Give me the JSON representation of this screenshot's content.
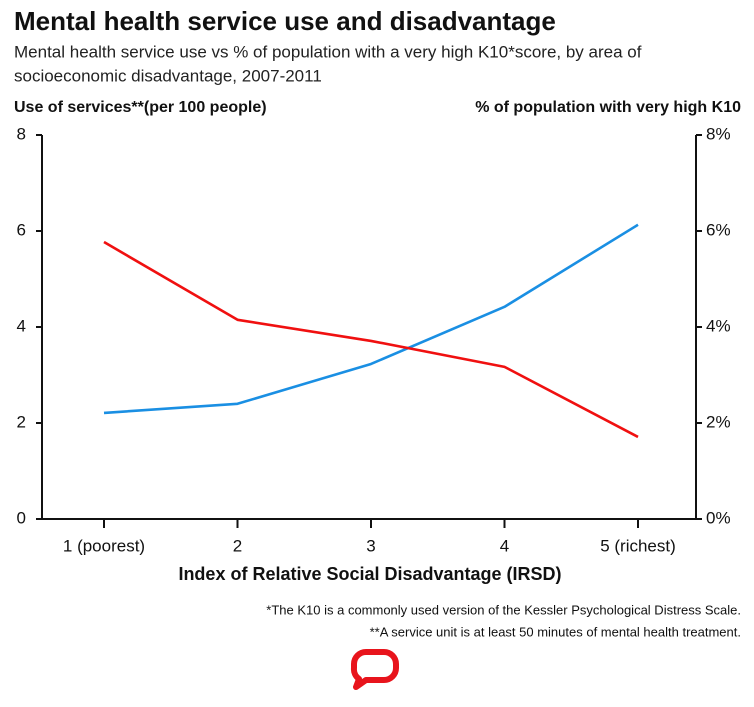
{
  "chart_data": {
    "type": "line",
    "title": "Mental health service use and disadvantage",
    "subtitle": [
      "Mental health service use vs % of population with a very high K10*score, by area of",
      "socioeconomic disadvantage, 2007-2011"
    ],
    "y_label": "Use of services**(per 100 people)",
    "y2_label": "% of population with very high K10",
    "x_label": "Index of Relative Social Disadvantage (IRSD)",
    "categories": [
      "1 (poorest)",
      "2",
      "3",
      "4",
      "5 (richest)"
    ],
    "series": [
      {
        "color": "#1a8fe3",
        "values": [
          2.21,
          2.4,
          3.23,
          4.42,
          6.13
        ]
      },
      {
        "color": "#f01010",
        "axis": "y2",
        "values": [
          5.77,
          4.15,
          3.71,
          3.17,
          1.71
        ]
      }
    ],
    "ylim": [
      0,
      8
    ],
    "yticks": [
      0,
      2,
      4,
      6,
      8
    ],
    "y2lim": [
      0,
      8
    ],
    "y2ticks": [
      {
        "value": 0,
        "label": "0%"
      },
      {
        "value": 2,
        "label": "2%"
      },
      {
        "value": 4,
        "label": "4%"
      },
      {
        "value": 6,
        "label": "6%"
      },
      {
        "value": 8,
        "label": "8%"
      }
    ],
    "footnotes": [
      "*The K10 is a commonly used version of the Kessler Psychological Distress Scale.",
      "**A service unit is at least 50 minutes of mental health treatment."
    ]
  }
}
